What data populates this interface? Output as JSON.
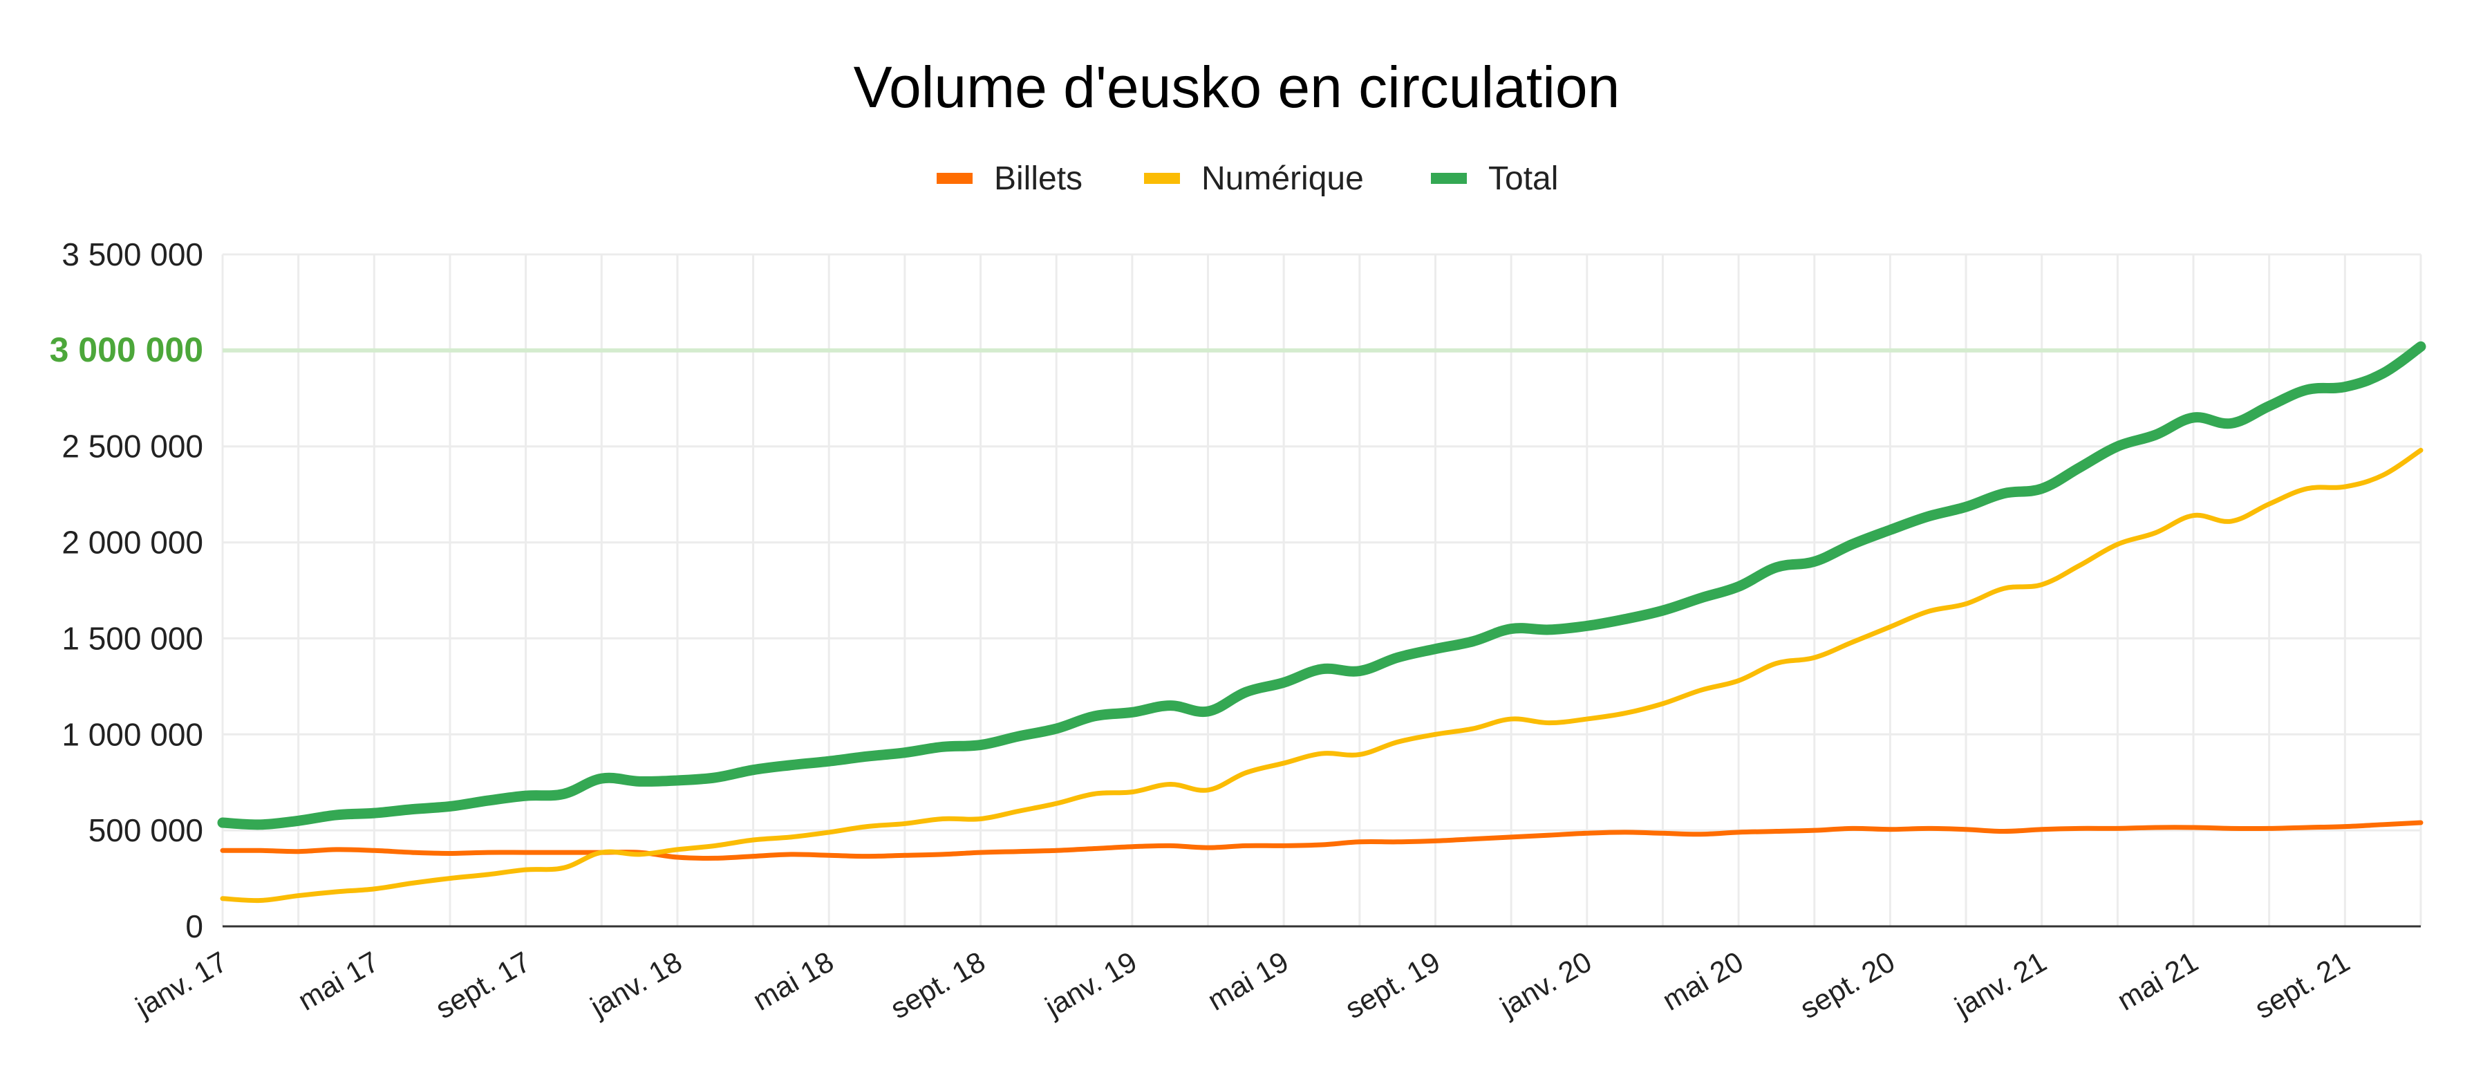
{
  "chart_data": {
    "type": "line",
    "title": "Volume d'eusko en circulation",
    "xlabel": "",
    "ylabel": "",
    "ylim": [
      0,
      3500000
    ],
    "y_ticks": [
      0,
      500000,
      1000000,
      1500000,
      2000000,
      2500000,
      3000000,
      3500000
    ],
    "y_tick_labels": [
      "0",
      "500 000",
      "1 000 000",
      "1 500 000",
      "2 000 000",
      "2 500 000",
      "3 000 000",
      "3 500 000"
    ],
    "highlight": {
      "value": 3000000,
      "label": "3 000 000",
      "color": "#4ca73a",
      "line_color": "#d4ecce"
    },
    "grid": true,
    "legend_position": "top",
    "x_tick_labels": [
      "janv. 17",
      "mai 17",
      "sept. 17",
      "janv. 18",
      "mai 18",
      "sept. 18",
      "janv. 19",
      "mai 19",
      "sept. 19",
      "janv. 20",
      "mai 20",
      "sept. 20",
      "janv. 21",
      "mai 21",
      "sept. 21"
    ],
    "x": [
      "2017-01",
      "2017-02",
      "2017-03",
      "2017-04",
      "2017-05",
      "2017-06",
      "2017-07",
      "2017-08",
      "2017-09",
      "2017-10",
      "2017-11",
      "2017-12",
      "2018-01",
      "2018-02",
      "2018-03",
      "2018-04",
      "2018-05",
      "2018-06",
      "2018-07",
      "2018-08",
      "2018-09",
      "2018-10",
      "2018-11",
      "2018-12",
      "2019-01",
      "2019-02",
      "2019-03",
      "2019-04",
      "2019-05",
      "2019-06",
      "2019-07",
      "2019-08",
      "2019-09",
      "2019-10",
      "2019-11",
      "2019-12",
      "2020-01",
      "2020-02",
      "2020-03",
      "2020-04",
      "2020-05",
      "2020-06",
      "2020-07",
      "2020-08",
      "2020-09",
      "2020-10",
      "2020-11",
      "2020-12",
      "2021-01",
      "2021-02",
      "2021-03",
      "2021-04",
      "2021-05",
      "2021-06",
      "2021-07",
      "2021-08",
      "2021-09",
      "2021-10",
      "2021-11"
    ],
    "series": [
      {
        "name": "Billets",
        "color": "#ff6d01",
        "values": [
          395000,
          395000,
          390000,
          400000,
          395000,
          385000,
          380000,
          385000,
          385000,
          385000,
          385000,
          385000,
          360000,
          355000,
          365000,
          375000,
          370000,
          365000,
          370000,
          375000,
          385000,
          390000,
          395000,
          405000,
          415000,
          420000,
          410000,
          420000,
          420000,
          425000,
          440000,
          440000,
          445000,
          455000,
          465000,
          475000,
          485000,
          490000,
          485000,
          480000,
          490000,
          495000,
          500000,
          510000,
          505000,
          510000,
          505000,
          495000,
          505000,
          510000,
          510000,
          515000,
          515000,
          510000,
          510000,
          515000,
          520000,
          530000,
          540000
        ]
      },
      {
        "name": "Numérique",
        "color": "#fbbc04",
        "values": [
          145000,
          135000,
          160000,
          180000,
          195000,
          225000,
          250000,
          270000,
          295000,
          305000,
          385000,
          375000,
          400000,
          420000,
          450000,
          465000,
          490000,
          520000,
          535000,
          560000,
          560000,
          600000,
          640000,
          690000,
          700000,
          740000,
          710000,
          800000,
          850000,
          900000,
          895000,
          960000,
          1000000,
          1030000,
          1080000,
          1060000,
          1080000,
          1110000,
          1160000,
          1230000,
          1280000,
          1370000,
          1400000,
          1480000,
          1560000,
          1640000,
          1680000,
          1760000,
          1780000,
          1880000,
          1990000,
          2050000,
          2140000,
          2110000,
          2200000,
          2280000,
          2290000,
          2350000,
          2480000
        ]
      },
      {
        "name": "Total",
        "color": "#34a853",
        "values": [
          540000,
          530000,
          550000,
          580000,
          590000,
          610000,
          625000,
          655000,
          680000,
          690000,
          770000,
          755000,
          760000,
          775000,
          815000,
          840000,
          860000,
          885000,
          905000,
          935000,
          945000,
          990000,
          1030000,
          1095000,
          1115000,
          1150000,
          1120000,
          1220000,
          1270000,
          1340000,
          1330000,
          1400000,
          1445000,
          1485000,
          1550000,
          1545000,
          1565000,
          1600000,
          1645000,
          1710000,
          1770000,
          1870000,
          1900000,
          1990000,
          2065000,
          2135000,
          2185000,
          2255000,
          2280000,
          2390000,
          2500000,
          2560000,
          2650000,
          2620000,
          2710000,
          2795000,
          2810000,
          2880000,
          3020000
        ]
      }
    ]
  }
}
